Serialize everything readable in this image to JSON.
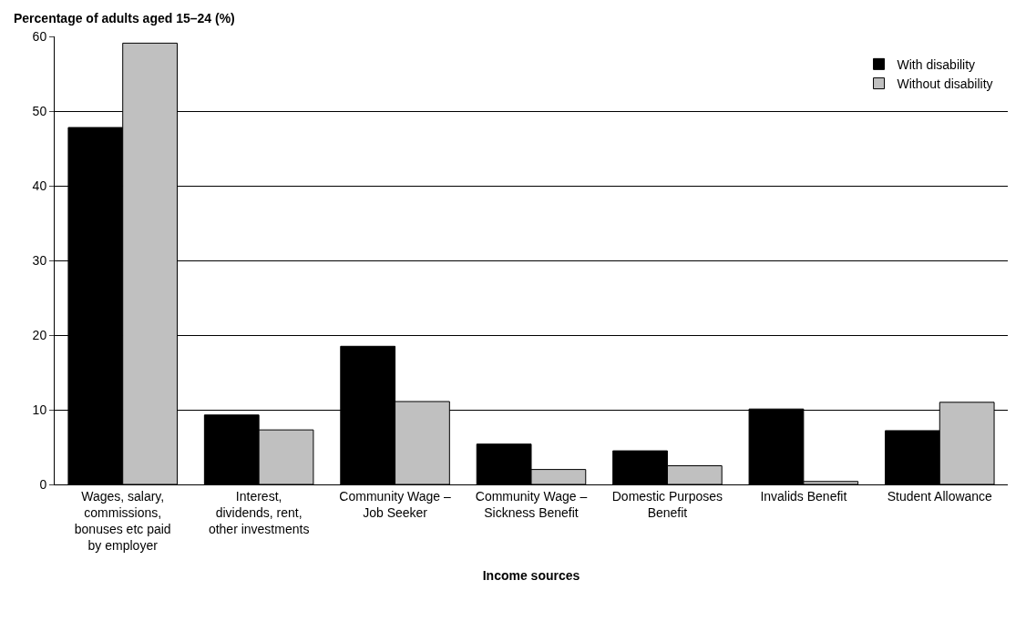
{
  "chart_data": {
    "type": "bar",
    "ylabel": "Percentage of adults aged 15–24 (%)",
    "xlabel": "Income sources",
    "categories": [
      "Wages, salary, commissions, bonuses etc paid by employer",
      "Interest, dividends, rent, other investments",
      "Community Wage – Job Seeker",
      "Community Wage – Sickness Benefit",
      "Domestic Purposes Benefit",
      "Invalids Benefit",
      "Student Allowance"
    ],
    "series": [
      {
        "name": "With disability",
        "color": "#000000",
        "values": [
          47.8,
          9.3,
          18.5,
          5.4,
          4.5,
          10.1,
          7.2
        ]
      },
      {
        "name": "Without disability",
        "color": "#c0c0c0",
        "values": [
          59.1,
          7.3,
          11.1,
          2.0,
          2.5,
          0.4,
          11.0
        ]
      }
    ],
    "ylim": [
      0,
      60
    ],
    "yticks": [
      0,
      10,
      20,
      30,
      40,
      50,
      60
    ],
    "grid": "y",
    "legend": "top right"
  }
}
